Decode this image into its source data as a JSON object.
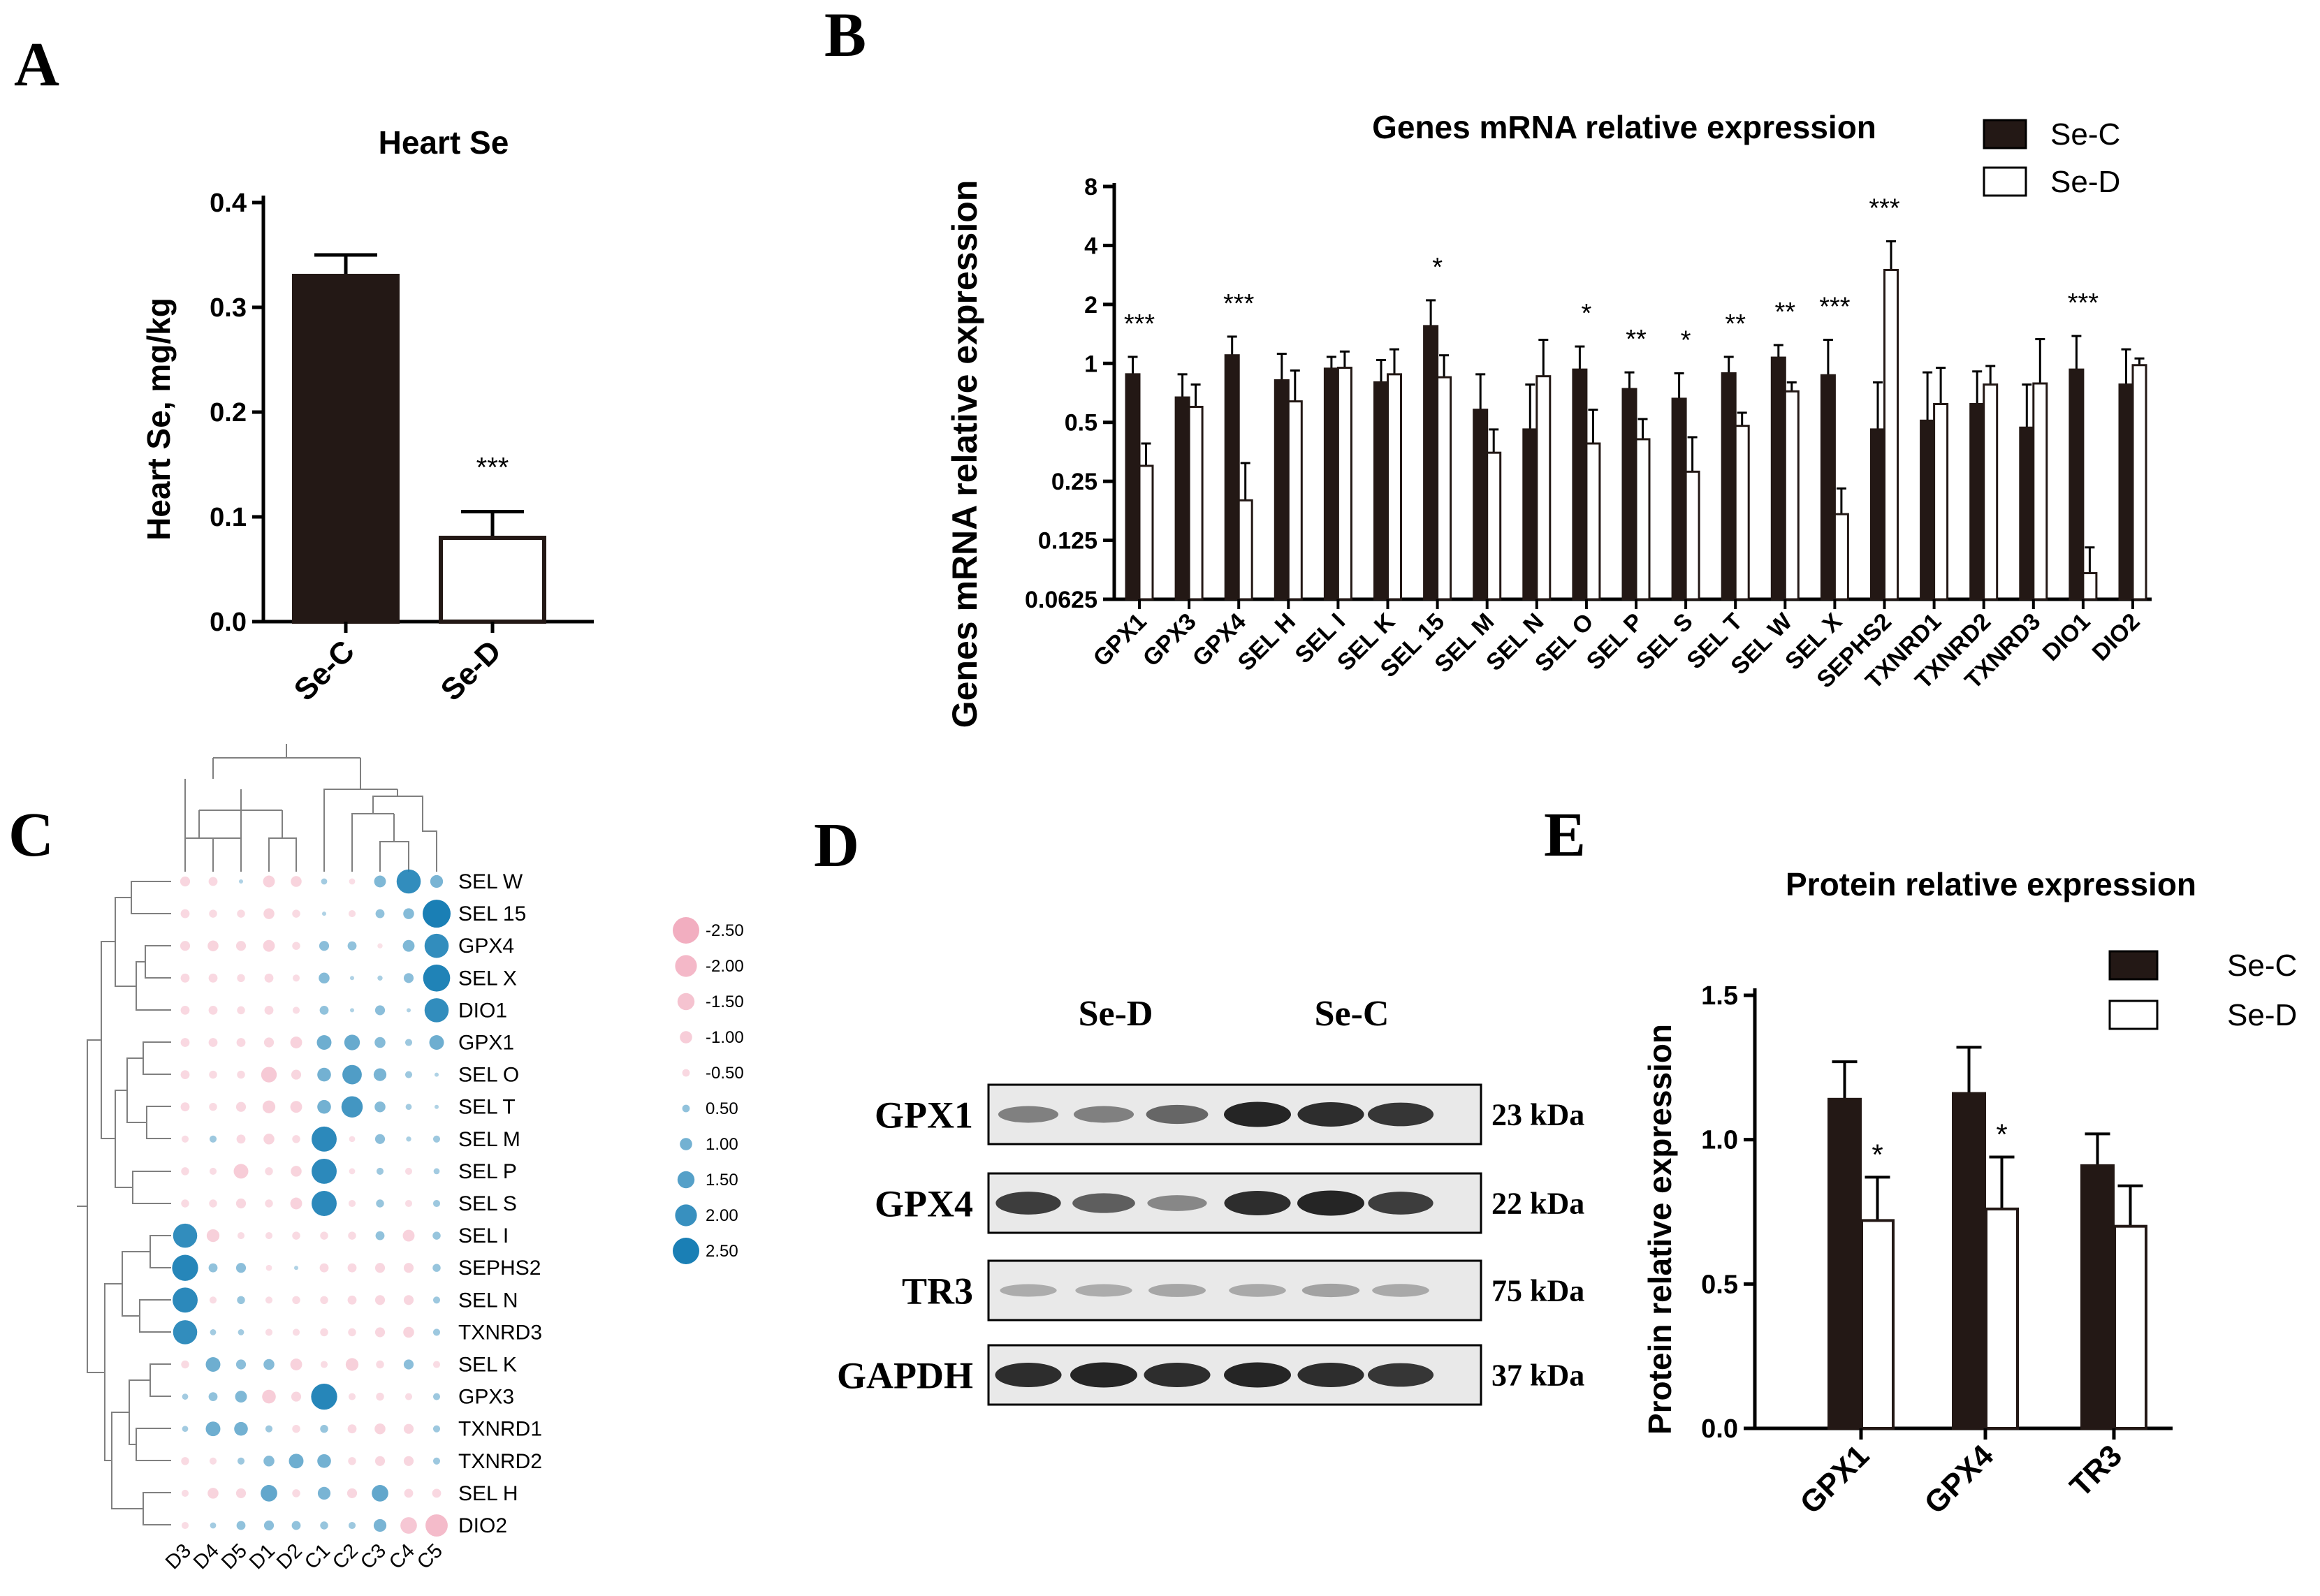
{
  "panels": {
    "A": "A",
    "B": "B",
    "C": "C",
    "D": "D",
    "E": "E"
  },
  "colors": {
    "se_c_fill": "#231815",
    "se_d_fill": "#ffffff",
    "stroke": "#000000",
    "heat_pos": "#1a7fb5",
    "heat_neg": "#f2aec0",
    "heat_zero": "#dcdcdc",
    "blot_bg": "#e9e9e9",
    "band": "#1e1e1e"
  },
  "chart_data": [
    {
      "id": "A",
      "type": "bar",
      "title": "Heart Se",
      "ylabel": "Heart Se, mg/kg",
      "xlabel": "",
      "categories": [
        "Se-C",
        "Se-D"
      ],
      "values": [
        0.33,
        0.08
      ],
      "errors": [
        0.02,
        0.025
      ],
      "fills": [
        "#231815",
        "#ffffff"
      ],
      "ylim": [
        0,
        0.4
      ],
      "yticks": [
        0,
        0.1,
        0.2,
        0.3,
        0.4
      ],
      "ytick_labels": [
        "0.0",
        "0.1",
        "0.2",
        "0.3",
        "0.4"
      ],
      "annotations": [
        {
          "category": "Se-D",
          "text": "***"
        }
      ]
    },
    {
      "id": "B",
      "type": "bar",
      "title": "Genes mRNA relative expression",
      "ylabel": "Genes mRNA relative expression",
      "xlabel": "",
      "yscale": "log2",
      "ylim": [
        0.0625,
        8
      ],
      "yticks": [
        0.0625,
        0.125,
        0.25,
        0.5,
        1,
        2,
        4,
        8
      ],
      "ytick_labels": [
        "0.0625",
        "0.125",
        "0.25",
        "0.5",
        "1",
        "2",
        "4",
        "8"
      ],
      "legend_position": "top-right",
      "categories": [
        "GPX1",
        "GPX3",
        "GPX4",
        "SEL H",
        "SEL I",
        "SEL K",
        "SEL 15",
        "SEL M",
        "SEL N",
        "SEL O",
        "SEL P",
        "SEL S",
        "SEL T",
        "SEL W",
        "SEL X",
        "SEPHS2",
        "TXNRD1",
        "TXNRD2",
        "TXNRD3",
        "DIO1",
        "DIO2"
      ],
      "series": [
        {
          "name": "Se-C",
          "fill": "#231815",
          "values": [
            0.88,
            0.67,
            1.1,
            0.82,
            0.94,
            0.8,
            1.55,
            0.58,
            0.46,
            0.93,
            0.74,
            0.66,
            0.89,
            1.07,
            0.87,
            0.46,
            0.51,
            0.62,
            0.47,
            0.93,
            0.78
          ],
          "errors_upper": [
            1.08,
            0.88,
            1.37,
            1.12,
            1.08,
            1.04,
            2.1,
            0.88,
            0.78,
            1.22,
            0.9,
            0.89,
            1.08,
            1.24,
            1.32,
            0.8,
            0.9,
            0.91,
            0.78,
            1.38,
            1.18
          ]
        },
        {
          "name": "Se-D",
          "fill": "#ffffff",
          "values": [
            0.3,
            0.6,
            0.2,
            0.64,
            0.95,
            0.88,
            0.85,
            0.35,
            0.86,
            0.39,
            0.41,
            0.28,
            0.48,
            0.72,
            0.17,
            3.0,
            0.62,
            0.78,
            0.79,
            0.085,
            0.98
          ],
          "errors_upper": [
            0.39,
            0.78,
            0.31,
            0.92,
            1.15,
            1.18,
            1.1,
            0.46,
            1.32,
            0.58,
            0.52,
            0.42,
            0.56,
            0.8,
            0.23,
            4.2,
            0.95,
            0.97,
            1.33,
            0.115,
            1.06
          ]
        }
      ],
      "annotations": [
        {
          "category": "GPX1",
          "text": "***"
        },
        {
          "category": "GPX4",
          "text": "***"
        },
        {
          "category": "SEL 15",
          "text": "*"
        },
        {
          "category": "SEL O",
          "text": "*"
        },
        {
          "category": "SEL P",
          "text": "**"
        },
        {
          "category": "SEL S",
          "text": "*"
        },
        {
          "category": "SEL T",
          "text": "**"
        },
        {
          "category": "SEL W",
          "text": "**"
        },
        {
          "category": "SEL X",
          "text": "***"
        },
        {
          "category": "SEPHS2",
          "text": "***"
        },
        {
          "category": "DIO1",
          "text": "***"
        }
      ]
    },
    {
      "id": "C",
      "type": "heatmap",
      "title": "",
      "columns": [
        "D3",
        "D4",
        "D5",
        "D1",
        "D2",
        "C1",
        "C2",
        "C3",
        "C4",
        "C5"
      ],
      "rows": [
        "SEL W",
        "SEL 15",
        "GPX4",
        "SEL X",
        "DIO1",
        "GPX1",
        "SEL O",
        "SEL T",
        "SEL M",
        "SEL P",
        "SEL S",
        "SEL I",
        "SEPHS2",
        "SEL N",
        "TXNRD3",
        "SEL K",
        "GPX3",
        "TXNRD1",
        "TXNRD2",
        "SEL H",
        "DIO2"
      ],
      "values": [
        [
          -0.6,
          -0.5,
          0,
          -0.8,
          -0.7,
          0.2,
          -0.2,
          0.8,
          2.1,
          0.9
        ],
        [
          -0.5,
          -0.4,
          -0.4,
          -0.7,
          -0.4,
          0,
          -0.3,
          0.5,
          0.7,
          2.5
        ],
        [
          -0.6,
          -0.7,
          -0.6,
          -0.8,
          -0.4,
          0.6,
          0.5,
          -0.1,
          0.8,
          2.1
        ],
        [
          -0.5,
          -0.5,
          -0.4,
          -0.5,
          -0.3,
          0.7,
          0,
          0.1,
          0.6,
          2.4
        ],
        [
          -0.5,
          -0.5,
          -0.4,
          -0.5,
          -0.3,
          0.5,
          0,
          0.6,
          0,
          2.1
        ],
        [
          -0.5,
          -0.5,
          -0.5,
          -0.6,
          -0.8,
          1.1,
          1.2,
          0.7,
          0.3,
          1.1
        ],
        [
          -0.5,
          -0.4,
          -0.4,
          -1.2,
          -0.6,
          1.0,
          1.6,
          0.9,
          0.3,
          0
        ],
        [
          -0.5,
          -0.4,
          -0.6,
          -0.9,
          -0.8,
          1.0,
          1.8,
          0.7,
          0.2,
          0
        ],
        [
          -0.3,
          0.3,
          -0.5,
          -0.7,
          -0.4,
          2.2,
          -0.2,
          0.6,
          0.1,
          0.3
        ],
        [
          -0.4,
          -0.3,
          -1.1,
          -0.4,
          -0.7,
          2.2,
          -0.2,
          0.3,
          -0.3,
          0.2
        ],
        [
          -0.4,
          -0.4,
          -0.6,
          -0.4,
          -0.8,
          2.2,
          -0.3,
          0.4,
          -0.3,
          0.3
        ],
        [
          2.1,
          -0.9,
          -0.3,
          -0.3,
          -0.4,
          -0.4,
          -0.4,
          0.5,
          -0.8,
          0.4
        ],
        [
          2.3,
          0.5,
          0.6,
          -0.2,
          0,
          -0.5,
          -0.5,
          -0.6,
          -0.6,
          0.4
        ],
        [
          2.2,
          -0.3,
          0.4,
          -0.3,
          -0.4,
          -0.4,
          -0.5,
          -0.6,
          -0.6,
          0.3
        ],
        [
          2.1,
          0.2,
          0.2,
          -0.3,
          -0.3,
          -0.4,
          -0.4,
          -0.6,
          -0.7,
          0.3
        ],
        [
          -0.4,
          1.1,
          0.6,
          0.7,
          -0.8,
          -0.3,
          -0.9,
          -0.4,
          0.6,
          -0.3
        ],
        [
          0.2,
          0.5,
          0.8,
          -1.0,
          -0.6,
          2.3,
          -0.3,
          -0.4,
          -0.3,
          0.3
        ],
        [
          0.2,
          1.1,
          1.0,
          0.3,
          -0.4,
          0.4,
          -0.5,
          -0.7,
          -0.6,
          0.3
        ],
        [
          -0.4,
          -0.3,
          0.3,
          0.7,
          1.1,
          1.0,
          -0.4,
          -0.6,
          -0.6,
          0.3
        ],
        [
          -0.3,
          -0.7,
          -0.6,
          1.3,
          -0.4,
          0.9,
          -0.6,
          1.3,
          -0.5,
          -0.5
        ],
        [
          -0.3,
          0.2,
          0.5,
          0.6,
          0.5,
          0.4,
          0.3,
          0.9,
          -1.3,
          -1.9
        ]
      ],
      "legend_values": [
        -2.5,
        -2.0,
        -1.5,
        -1.0,
        -0.5,
        0.5,
        1.0,
        1.5,
        2.0,
        2.5
      ],
      "legend_labels": [
        "-2.50",
        "-2.00",
        "-1.50",
        "-1.00",
        "-0.50",
        "0.50",
        "1.00",
        "1.50",
        "2.00",
        "2.50"
      ]
    },
    {
      "id": "E",
      "type": "bar",
      "title": "Protein relative expression",
      "ylabel": "Protein relative expression",
      "xlabel": "",
      "ylim": [
        0,
        1.5
      ],
      "yticks": [
        0,
        0.5,
        1.0,
        1.5
      ],
      "ytick_labels": [
        "0.0",
        "0.5",
        "1.0",
        "1.5"
      ],
      "legend_position": "top-right",
      "categories": [
        "GPX1",
        "GPX4",
        "TR3"
      ],
      "series": [
        {
          "name": "Se-C",
          "fill": "#231815",
          "values": [
            1.14,
            1.16,
            0.91
          ],
          "errors": [
            0.13,
            0.16,
            0.11
          ]
        },
        {
          "name": "Se-D",
          "fill": "#ffffff",
          "values": [
            0.72,
            0.76,
            0.7
          ],
          "errors": [
            0.15,
            0.18,
            0.14
          ]
        }
      ],
      "annotations": [
        {
          "category": "GPX1",
          "text": "*"
        },
        {
          "category": "GPX4",
          "text": "*"
        }
      ]
    }
  ],
  "blot": {
    "groups": [
      "Se-D",
      "Se-C"
    ],
    "rows": [
      {
        "protein": "GPX1",
        "size": "23 kDa",
        "intensities": [
          0.45,
          0.45,
          0.6,
          1.0,
          0.95,
          0.9
        ]
      },
      {
        "protein": "GPX4",
        "size": "22 kDa",
        "intensities": [
          0.85,
          0.65,
          0.4,
          0.95,
          1.0,
          0.85
        ]
      },
      {
        "protein": "TR3",
        "size": "75 kDa",
        "intensities": [
          0.18,
          0.18,
          0.22,
          0.2,
          0.24,
          0.2
        ]
      },
      {
        "protein": "GAPDH",
        "size": "37 kDa",
        "intensities": [
          0.95,
          1.0,
          0.95,
          1.0,
          0.95,
          0.9
        ]
      }
    ]
  }
}
